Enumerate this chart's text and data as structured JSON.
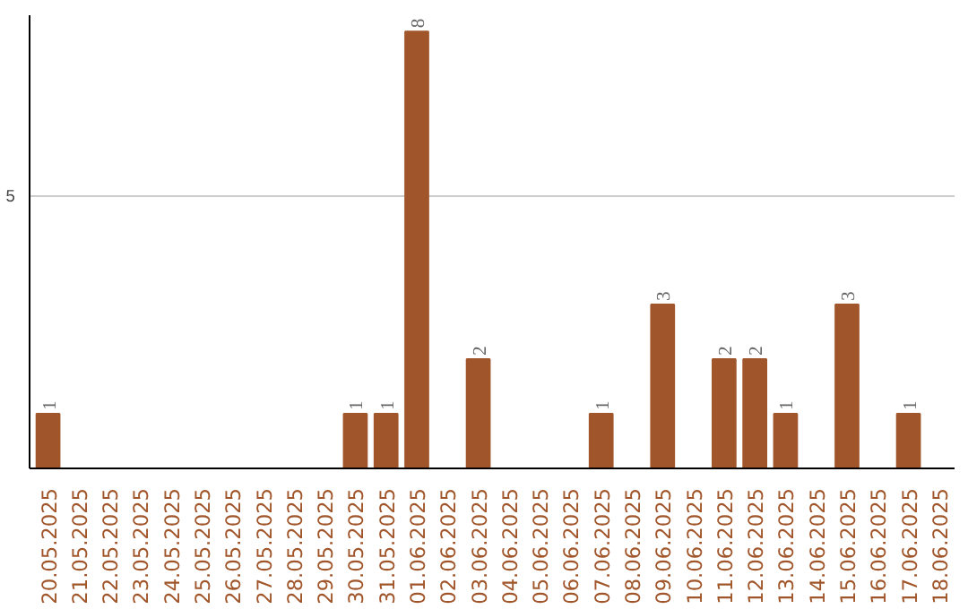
{
  "chart_data": {
    "type": "bar",
    "categories": [
      "20.05.2025",
      "21.05.2025",
      "22.05.2025",
      "23.05.2025",
      "24.05.2025",
      "25.05.2025",
      "26.05.2025",
      "27.05.2025",
      "28.05.2025",
      "29.05.2025",
      "30.05.2025",
      "31.05.2025",
      "01.06.2025",
      "02.06.2025",
      "03.06.2025",
      "04.06.2025",
      "05.06.2025",
      "06.06.2025",
      "07.06.2025",
      "08.06.2025",
      "09.06.2025",
      "10.06.2025",
      "11.06.2025",
      "12.06.2025",
      "13.06.2025",
      "14.06.2025",
      "15.06.2025",
      "16.06.2025",
      "17.06.2025",
      "18.06.2025"
    ],
    "values": [
      1,
      0,
      0,
      0,
      0,
      0,
      0,
      0,
      0,
      0,
      1,
      1,
      8,
      0,
      2,
      0,
      0,
      0,
      1,
      0,
      3,
      0,
      2,
      2,
      1,
      0,
      3,
      0,
      1,
      0
    ],
    "value_labels": [
      "1",
      null,
      null,
      null,
      null,
      null,
      null,
      null,
      null,
      null,
      "1",
      "1",
      "8",
      null,
      "2",
      null,
      null,
      null,
      "1",
      null,
      "3",
      null,
      "2",
      "2",
      "1",
      null,
      "3",
      null,
      "1",
      null
    ],
    "color": "#a0562a",
    "ylim": [
      0,
      8.3
    ],
    "yticks": [
      5
    ],
    "grid": "y"
  }
}
